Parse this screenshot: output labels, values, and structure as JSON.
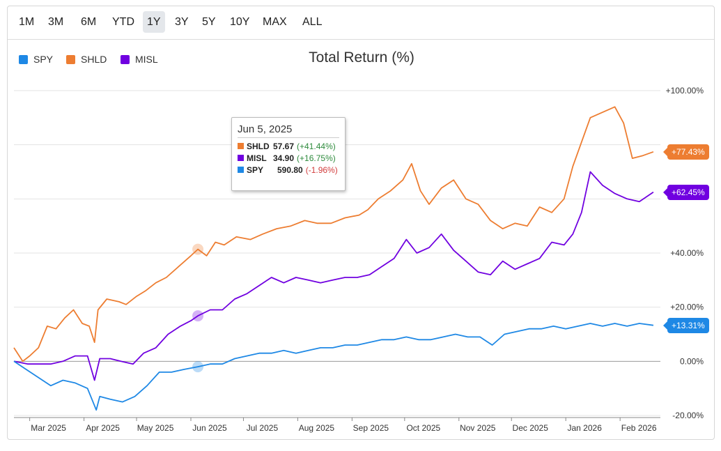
{
  "range_buttons": [
    {
      "label": "1M",
      "active": false
    },
    {
      "label": "3M",
      "active": false
    },
    {
      "label": "6M",
      "active": false
    },
    {
      "label": "YTD",
      "active": false
    },
    {
      "label": "1Y",
      "active": true
    },
    {
      "label": "3Y",
      "active": false
    },
    {
      "label": "5Y",
      "active": false
    },
    {
      "label": "10Y",
      "active": false
    },
    {
      "label": "MAX",
      "active": false
    },
    {
      "label": "ALL",
      "active": false
    }
  ],
  "legend": [
    {
      "label": "SPY",
      "color": "#1e88e5"
    },
    {
      "label": "SHLD",
      "color": "#ed7d31"
    },
    {
      "label": "MISL",
      "color": "#7000e0"
    }
  ],
  "tooltip": {
    "date": "Jun 5, 2025",
    "rows": [
      {
        "name": "SHLD",
        "value": "57.67",
        "change": "(+41.44%)",
        "color": "#ed7d31",
        "direction": "up"
      },
      {
        "name": "MISL",
        "value": "34.90",
        "change": "(+16.75%)",
        "color": "#7000e0",
        "direction": "up"
      },
      {
        "name": "SPY",
        "value": "590.80",
        "change": "(-1.96%)",
        "color": "#1e88e5",
        "direction": "down"
      }
    ]
  },
  "end_flags": [
    {
      "series": "SHLD",
      "label": "+77.43%",
      "color": "#ed7d31"
    },
    {
      "series": "MISL",
      "label": "+62.45%",
      "color": "#7000e0"
    },
    {
      "series": "SPY",
      "label": "+13.31%",
      "color": "#1e88e5"
    }
  ],
  "chart_data": {
    "type": "line",
    "title": "Total Return (%)",
    "xlabel": "",
    "ylabel": "",
    "ylim": [
      -20,
      100
    ],
    "y_ticks": [
      -20,
      0,
      20,
      40,
      60,
      80,
      100
    ],
    "y_tick_labels": [
      "-20.00%",
      "0.00%",
      "+20.00%",
      "+40.00%",
      "",
      "",
      "+100.00%"
    ],
    "x_range": [
      "2025-02-20",
      "2026-02-24"
    ],
    "x_ticks": [
      {
        "label": "Mar 2025",
        "date": "2025-03-01"
      },
      {
        "label": "Apr 2025",
        "date": "2025-04-01"
      },
      {
        "label": "May 2025",
        "date": "2025-05-01"
      },
      {
        "label": "Jun 2025",
        "date": "2025-06-01"
      },
      {
        "label": "Jul 2025",
        "date": "2025-07-01"
      },
      {
        "label": "Aug 2025",
        "date": "2025-08-01"
      },
      {
        "label": "Sep 2025",
        "date": "2025-09-01"
      },
      {
        "label": "Oct 2025",
        "date": "2025-10-01"
      },
      {
        "label": "Nov 2025",
        "date": "2025-11-01"
      },
      {
        "label": "Dec 2025",
        "date": "2025-12-01"
      },
      {
        "label": "Jan 2026",
        "date": "2026-01-01"
      },
      {
        "label": "Feb 2026",
        "date": "2026-02-01"
      }
    ],
    "grid": true,
    "legend_position": "top-left",
    "hover_date": "2025-06-05",
    "series": [
      {
        "name": "SHLD",
        "color": "#ed7d31",
        "points": [
          [
            "2025-02-20",
            5
          ],
          [
            "2025-02-25",
            0
          ],
          [
            "2025-03-01",
            2
          ],
          [
            "2025-03-06",
            5
          ],
          [
            "2025-03-11",
            13
          ],
          [
            "2025-03-16",
            12
          ],
          [
            "2025-03-21",
            16
          ],
          [
            "2025-03-26",
            19
          ],
          [
            "2025-03-31",
            14
          ],
          [
            "2025-04-04",
            13
          ],
          [
            "2025-04-07",
            7
          ],
          [
            "2025-04-09",
            19
          ],
          [
            "2025-04-14",
            23
          ],
          [
            "2025-04-21",
            22
          ],
          [
            "2025-04-25",
            21
          ],
          [
            "2025-05-01",
            24
          ],
          [
            "2025-05-06",
            26
          ],
          [
            "2025-05-12",
            29
          ],
          [
            "2025-05-18",
            31
          ],
          [
            "2025-05-25",
            35
          ],
          [
            "2025-06-01",
            39
          ],
          [
            "2025-06-05",
            41.4
          ],
          [
            "2025-06-10",
            39
          ],
          [
            "2025-06-15",
            44
          ],
          [
            "2025-06-20",
            43
          ],
          [
            "2025-06-27",
            46
          ],
          [
            "2025-07-05",
            45
          ],
          [
            "2025-07-12",
            47
          ],
          [
            "2025-07-20",
            49
          ],
          [
            "2025-07-28",
            50
          ],
          [
            "2025-08-05",
            52
          ],
          [
            "2025-08-12",
            51
          ],
          [
            "2025-08-20",
            51
          ],
          [
            "2025-08-28",
            53
          ],
          [
            "2025-09-05",
            54
          ],
          [
            "2025-09-10",
            56
          ],
          [
            "2025-09-16",
            60
          ],
          [
            "2025-09-23",
            63
          ],
          [
            "2025-09-30",
            67
          ],
          [
            "2025-10-05",
            73
          ],
          [
            "2025-10-10",
            63
          ],
          [
            "2025-10-15",
            58
          ],
          [
            "2025-10-22",
            64
          ],
          [
            "2025-10-29",
            67
          ],
          [
            "2025-11-05",
            60
          ],
          [
            "2025-11-12",
            58
          ],
          [
            "2025-11-19",
            52
          ],
          [
            "2025-11-26",
            49
          ],
          [
            "2025-12-03",
            51
          ],
          [
            "2025-12-10",
            50
          ],
          [
            "2025-12-17",
            57
          ],
          [
            "2025-12-24",
            55
          ],
          [
            "2025-12-31",
            60
          ],
          [
            "2026-01-05",
            72
          ],
          [
            "2026-01-10",
            81
          ],
          [
            "2026-01-15",
            90
          ],
          [
            "2026-01-22",
            92
          ],
          [
            "2026-01-29",
            94
          ],
          [
            "2026-02-03",
            88
          ],
          [
            "2026-02-08",
            75
          ],
          [
            "2026-02-14",
            76
          ],
          [
            "2026-02-20",
            77.4
          ]
        ]
      },
      {
        "name": "MISL",
        "color": "#7000e0",
        "points": [
          [
            "2025-02-20",
            0
          ],
          [
            "2025-02-28",
            -1
          ],
          [
            "2025-03-06",
            -1
          ],
          [
            "2025-03-13",
            -1
          ],
          [
            "2025-03-20",
            0
          ],
          [
            "2025-03-27",
            2
          ],
          [
            "2025-04-03",
            2
          ],
          [
            "2025-04-07",
            -7
          ],
          [
            "2025-04-10",
            1
          ],
          [
            "2025-04-16",
            1
          ],
          [
            "2025-04-22",
            0
          ],
          [
            "2025-04-29",
            -1
          ],
          [
            "2025-05-05",
            3
          ],
          [
            "2025-05-12",
            5
          ],
          [
            "2025-05-19",
            10
          ],
          [
            "2025-05-26",
            13
          ],
          [
            "2025-06-01",
            15
          ],
          [
            "2025-06-05",
            16.8
          ],
          [
            "2025-06-12",
            19
          ],
          [
            "2025-06-19",
            19
          ],
          [
            "2025-06-26",
            23
          ],
          [
            "2025-07-03",
            25
          ],
          [
            "2025-07-10",
            28
          ],
          [
            "2025-07-17",
            31
          ],
          [
            "2025-07-24",
            29
          ],
          [
            "2025-07-31",
            31
          ],
          [
            "2025-08-07",
            30
          ],
          [
            "2025-08-14",
            29
          ],
          [
            "2025-08-21",
            30
          ],
          [
            "2025-08-28",
            31
          ],
          [
            "2025-09-04",
            31
          ],
          [
            "2025-09-11",
            32
          ],
          [
            "2025-09-18",
            35
          ],
          [
            "2025-09-25",
            38
          ],
          [
            "2025-10-02",
            45
          ],
          [
            "2025-10-08",
            40
          ],
          [
            "2025-10-15",
            42
          ],
          [
            "2025-10-22",
            47
          ],
          [
            "2025-10-29",
            41
          ],
          [
            "2025-11-05",
            37
          ],
          [
            "2025-11-12",
            33
          ],
          [
            "2025-11-19",
            32
          ],
          [
            "2025-11-26",
            37
          ],
          [
            "2025-12-03",
            34
          ],
          [
            "2025-12-10",
            36
          ],
          [
            "2025-12-17",
            38
          ],
          [
            "2025-12-24",
            44
          ],
          [
            "2025-12-31",
            43
          ],
          [
            "2026-01-05",
            47
          ],
          [
            "2026-01-10",
            55
          ],
          [
            "2026-01-15",
            70
          ],
          [
            "2026-01-22",
            65
          ],
          [
            "2026-01-29",
            62
          ],
          [
            "2026-02-05",
            60
          ],
          [
            "2026-02-12",
            59
          ],
          [
            "2026-02-20",
            62.5
          ]
        ]
      },
      {
        "name": "SPY",
        "color": "#1e88e5",
        "points": [
          [
            "2025-02-20",
            0
          ],
          [
            "2025-02-27",
            -3
          ],
          [
            "2025-03-06",
            -6
          ],
          [
            "2025-03-13",
            -9
          ],
          [
            "2025-03-20",
            -7
          ],
          [
            "2025-03-27",
            -8
          ],
          [
            "2025-04-03",
            -10
          ],
          [
            "2025-04-08",
            -18
          ],
          [
            "2025-04-10",
            -13
          ],
          [
            "2025-04-16",
            -14
          ],
          [
            "2025-04-23",
            -15
          ],
          [
            "2025-04-30",
            -13
          ],
          [
            "2025-05-07",
            -9
          ],
          [
            "2025-05-14",
            -4
          ],
          [
            "2025-05-21",
            -4
          ],
          [
            "2025-05-28",
            -3
          ],
          [
            "2025-06-05",
            -2
          ],
          [
            "2025-06-12",
            -1
          ],
          [
            "2025-06-19",
            -1
          ],
          [
            "2025-06-26",
            1
          ],
          [
            "2025-07-03",
            2
          ],
          [
            "2025-07-10",
            3
          ],
          [
            "2025-07-17",
            3
          ],
          [
            "2025-07-24",
            4
          ],
          [
            "2025-07-31",
            3
          ],
          [
            "2025-08-07",
            4
          ],
          [
            "2025-08-14",
            5
          ],
          [
            "2025-08-21",
            5
          ],
          [
            "2025-08-28",
            6
          ],
          [
            "2025-09-04",
            6
          ],
          [
            "2025-09-11",
            7
          ],
          [
            "2025-09-18",
            8
          ],
          [
            "2025-09-25",
            8
          ],
          [
            "2025-10-02",
            9
          ],
          [
            "2025-10-09",
            8
          ],
          [
            "2025-10-16",
            8
          ],
          [
            "2025-10-23",
            9
          ],
          [
            "2025-10-30",
            10
          ],
          [
            "2025-11-06",
            9
          ],
          [
            "2025-11-13",
            9
          ],
          [
            "2025-11-20",
            6
          ],
          [
            "2025-11-27",
            10
          ],
          [
            "2025-12-04",
            11
          ],
          [
            "2025-12-11",
            12
          ],
          [
            "2025-12-18",
            12
          ],
          [
            "2025-12-25",
            13
          ],
          [
            "2026-01-01",
            12
          ],
          [
            "2026-01-08",
            13
          ],
          [
            "2026-01-15",
            14
          ],
          [
            "2026-01-22",
            13
          ],
          [
            "2026-01-29",
            14
          ],
          [
            "2026-02-05",
            13
          ],
          [
            "2026-02-12",
            14
          ],
          [
            "2026-02-20",
            13.3
          ]
        ]
      }
    ]
  }
}
